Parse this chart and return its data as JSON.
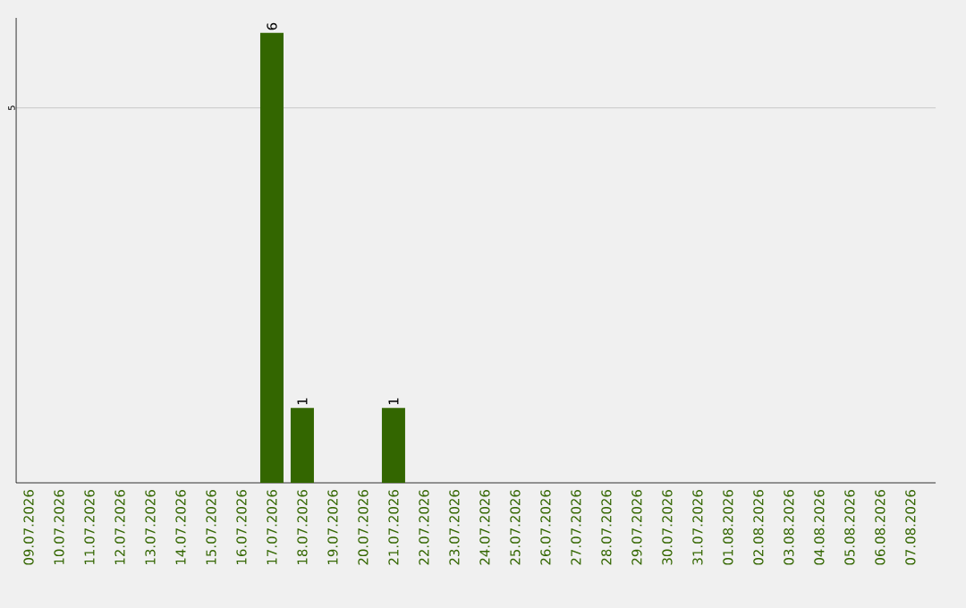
{
  "chart_data": {
    "type": "bar",
    "categories": [
      "09.07.2026",
      "10.07.2026",
      "11.07.2026",
      "12.07.2026",
      "13.07.2026",
      "14.07.2026",
      "15.07.2026",
      "16.07.2026",
      "17.07.2026",
      "18.07.2026",
      "19.07.2026",
      "20.07.2026",
      "21.07.2026",
      "22.07.2026",
      "23.07.2026",
      "24.07.2026",
      "25.07.2026",
      "26.07.2026",
      "27.07.2026",
      "28.07.2026",
      "29.07.2026",
      "30.07.2026",
      "31.07.2026",
      "01.08.2026",
      "02.08.2026",
      "03.08.2026",
      "04.08.2026",
      "05.08.2026",
      "06.08.2026",
      "07.08.2026"
    ],
    "values": [
      0,
      0,
      0,
      0,
      0,
      0,
      0,
      0,
      6,
      1,
      0,
      0,
      1,
      0,
      0,
      0,
      0,
      0,
      0,
      0,
      0,
      0,
      0,
      0,
      0,
      0,
      0,
      0,
      0,
      0
    ],
    "value_labels": [
      null,
      null,
      null,
      null,
      null,
      null,
      null,
      null,
      "6",
      "1",
      null,
      null,
      "1",
      null,
      null,
      null,
      null,
      null,
      null,
      null,
      null,
      null,
      null,
      null,
      null,
      null,
      null,
      null,
      null,
      null
    ],
    "color": "#336600",
    "ylim": [
      0,
      6.2
    ],
    "yticks": [
      5
    ],
    "grid": "y"
  }
}
